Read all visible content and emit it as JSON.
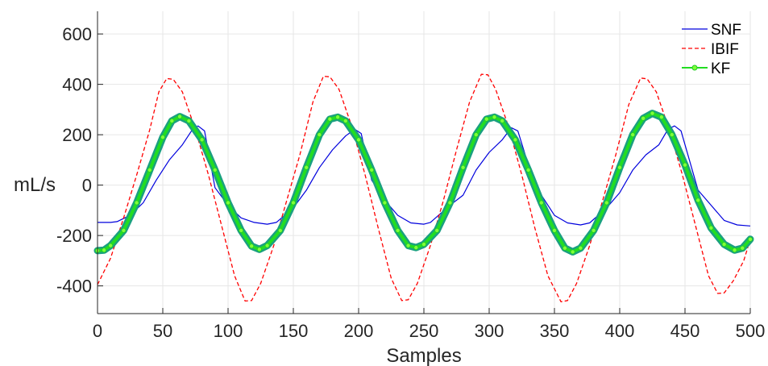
{
  "chart_data": {
    "type": "line",
    "title": "",
    "xlabel": "Samples",
    "ylabel": "mL/s",
    "xlim": [
      0,
      500
    ],
    "ylim": [
      -510,
      690
    ],
    "x_ticks": [
      0,
      50,
      100,
      150,
      200,
      250,
      300,
      350,
      400,
      450,
      500
    ],
    "y_ticks": [
      -400,
      -200,
      0,
      200,
      400,
      600
    ],
    "grid": true,
    "legend_position": "top-right",
    "series": [
      {
        "name": "SNF",
        "color": "#0000dd",
        "style": "solid",
        "points": [
          [
            0,
            -148
          ],
          [
            10,
            -148
          ],
          [
            15,
            -145
          ],
          [
            25,
            -120
          ],
          [
            35,
            -70
          ],
          [
            45,
            20
          ],
          [
            55,
            100
          ],
          [
            65,
            160
          ],
          [
            72,
            215
          ],
          [
            77,
            235
          ],
          [
            82,
            215
          ],
          [
            90,
            -10
          ],
          [
            100,
            -80
          ],
          [
            110,
            -130
          ],
          [
            120,
            -148
          ],
          [
            130,
            -155
          ],
          [
            137,
            -148
          ],
          [
            150,
            -90
          ],
          [
            160,
            -20
          ],
          [
            170,
            70
          ],
          [
            180,
            140
          ],
          [
            190,
            195
          ],
          [
            197,
            222
          ],
          [
            202,
            205
          ],
          [
            210,
            20
          ],
          [
            220,
            -60
          ],
          [
            230,
            -120
          ],
          [
            240,
            -150
          ],
          [
            250,
            -155
          ],
          [
            255,
            -148
          ],
          [
            270,
            -80
          ],
          [
            280,
            -40
          ],
          [
            290,
            60
          ],
          [
            300,
            130
          ],
          [
            310,
            180
          ],
          [
            317,
            228
          ],
          [
            322,
            215
          ],
          [
            330,
            80
          ],
          [
            340,
            -40
          ],
          [
            350,
            -120
          ],
          [
            360,
            -150
          ],
          [
            370,
            -158
          ],
          [
            377,
            -150
          ],
          [
            390,
            -90
          ],
          [
            400,
            -30
          ],
          [
            410,
            60
          ],
          [
            420,
            120
          ],
          [
            430,
            160
          ],
          [
            437,
            222
          ],
          [
            442,
            235
          ],
          [
            447,
            215
          ],
          [
            460,
            -20
          ],
          [
            470,
            -80
          ],
          [
            480,
            -140
          ],
          [
            490,
            -158
          ],
          [
            500,
            -162
          ]
        ]
      },
      {
        "name": "IBIF",
        "color": "#ff0000",
        "style": "dashed",
        "points": [
          [
            0,
            -395
          ],
          [
            10,
            -290
          ],
          [
            20,
            -130
          ],
          [
            30,
            40
          ],
          [
            40,
            220
          ],
          [
            47,
            370
          ],
          [
            53,
            423
          ],
          [
            58,
            420
          ],
          [
            65,
            370
          ],
          [
            75,
            220
          ],
          [
            85,
            40
          ],
          [
            95,
            -160
          ],
          [
            105,
            -360
          ],
          [
            113,
            -460
          ],
          [
            118,
            -458
          ],
          [
            125,
            -390
          ],
          [
            135,
            -240
          ],
          [
            145,
            -60
          ],
          [
            155,
            120
          ],
          [
            165,
            330
          ],
          [
            173,
            432
          ],
          [
            178,
            430
          ],
          [
            185,
            380
          ],
          [
            195,
            230
          ],
          [
            205,
            40
          ],
          [
            215,
            -170
          ],
          [
            225,
            -370
          ],
          [
            233,
            -458
          ],
          [
            238,
            -455
          ],
          [
            245,
            -390
          ],
          [
            255,
            -240
          ],
          [
            265,
            -60
          ],
          [
            275,
            140
          ],
          [
            285,
            330
          ],
          [
            294,
            440
          ],
          [
            299,
            438
          ],
          [
            305,
            380
          ],
          [
            315,
            230
          ],
          [
            325,
            40
          ],
          [
            335,
            -170
          ],
          [
            345,
            -360
          ],
          [
            355,
            -463
          ],
          [
            360,
            -458
          ],
          [
            367,
            -390
          ],
          [
            377,
            -240
          ],
          [
            387,
            -60
          ],
          [
            397,
            120
          ],
          [
            407,
            320
          ],
          [
            416,
            425
          ],
          [
            421,
            422
          ],
          [
            428,
            370
          ],
          [
            438,
            220
          ],
          [
            448,
            40
          ],
          [
            458,
            -160
          ],
          [
            468,
            -360
          ],
          [
            475,
            -430
          ],
          [
            480,
            -428
          ],
          [
            487,
            -380
          ],
          [
            495,
            -300
          ],
          [
            500,
            -215
          ]
        ]
      },
      {
        "name": "KF",
        "color": "#22dd22",
        "style": "solid-markers",
        "points": [
          [
            0,
            -260
          ],
          [
            5,
            -258
          ],
          [
            10,
            -240
          ],
          [
            20,
            -180
          ],
          [
            30,
            -70
          ],
          [
            40,
            60
          ],
          [
            50,
            190
          ],
          [
            57,
            255
          ],
          [
            63,
            272
          ],
          [
            70,
            255
          ],
          [
            80,
            180
          ],
          [
            90,
            60
          ],
          [
            100,
            -70
          ],
          [
            110,
            -180
          ],
          [
            118,
            -242
          ],
          [
            124,
            -255
          ],
          [
            130,
            -240
          ],
          [
            140,
            -180
          ],
          [
            150,
            -70
          ],
          [
            160,
            70
          ],
          [
            170,
            200
          ],
          [
            178,
            262
          ],
          [
            184,
            270
          ],
          [
            190,
            255
          ],
          [
            200,
            180
          ],
          [
            210,
            60
          ],
          [
            220,
            -70
          ],
          [
            230,
            -180
          ],
          [
            238,
            -240
          ],
          [
            244,
            -248
          ],
          [
            250,
            -235
          ],
          [
            260,
            -180
          ],
          [
            270,
            -70
          ],
          [
            280,
            70
          ],
          [
            290,
            200
          ],
          [
            298,
            262
          ],
          [
            304,
            270
          ],
          [
            310,
            255
          ],
          [
            320,
            180
          ],
          [
            330,
            60
          ],
          [
            340,
            -70
          ],
          [
            350,
            -180
          ],
          [
            358,
            -250
          ],
          [
            364,
            -265
          ],
          [
            370,
            -250
          ],
          [
            380,
            -180
          ],
          [
            390,
            -70
          ],
          [
            400,
            70
          ],
          [
            410,
            200
          ],
          [
            418,
            265
          ],
          [
            425,
            285
          ],
          [
            432,
            270
          ],
          [
            440,
            200
          ],
          [
            450,
            80
          ],
          [
            460,
            -60
          ],
          [
            470,
            -170
          ],
          [
            480,
            -235
          ],
          [
            488,
            -258
          ],
          [
            494,
            -250
          ],
          [
            500,
            -215
          ]
        ]
      }
    ]
  }
}
